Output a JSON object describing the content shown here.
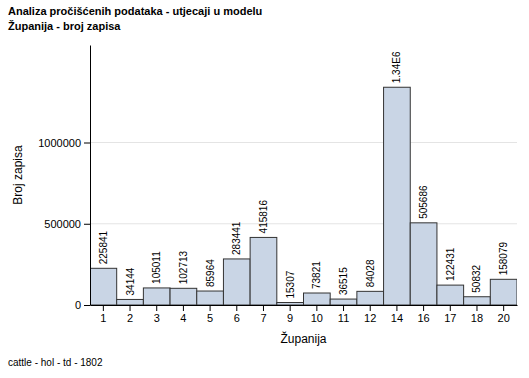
{
  "chart_data": {
    "type": "bar",
    "title": "Analiza pročišćenih podataka - utjecaji u modelu",
    "subtitle": "Županija - broj zapisa",
    "x_label": "Županija",
    "y_label": "Broj zapisa",
    "footnote": "cattle - hol - td - 1802",
    "categories": [
      "1",
      "2",
      "3",
      "4",
      "5",
      "6",
      "7",
      "9",
      "10",
      "11",
      "12",
      "14",
      "16",
      "17",
      "18",
      "20"
    ],
    "values": [
      225841,
      34144,
      105011,
      102713,
      85964,
      283441,
      415816,
      15307,
      73821,
      36515,
      84028,
      1340000,
      505686,
      122431,
      50832,
      158079
    ],
    "value_labels": [
      "225841",
      "34144",
      "105011",
      "102713",
      "85964",
      "283441",
      "415816",
      "15307",
      "73821",
      "36515",
      "84028",
      "1.34E6",
      "505686",
      "122431",
      "50832",
      "158079"
    ],
    "data_labels": true,
    "color": "#c9d5e5",
    "ylim": [
      0,
      1600000
    ],
    "yticks": [
      0,
      500000,
      1000000
    ],
    "grid": true
  }
}
